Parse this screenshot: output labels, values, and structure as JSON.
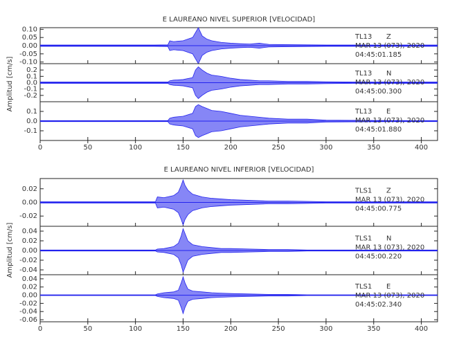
{
  "chart_data": [
    {
      "type": "line",
      "title": "E LAUREANO NIVEL SUPERIOR [VELOCIDAD]",
      "ylabel": "Amplitud [cm/s]",
      "xlim": [
        0,
        417
      ],
      "xticks": [
        0,
        50,
        100,
        150,
        200,
        250,
        300,
        350,
        400
      ],
      "x": [
        0,
        30,
        60,
        90,
        120,
        134,
        136,
        140,
        150,
        160,
        163,
        166,
        170,
        175,
        180,
        190,
        200,
        210,
        220,
        230,
        240,
        260,
        280,
        300,
        330,
        360,
        390,
        417
      ],
      "panels": [
        {
          "station": "TL13",
          "component": "Z",
          "date": "MAR 13 (073), 2020",
          "time": "04:45:01.185",
          "color": "#2222ee",
          "ylim": [
            -0.11,
            0.11
          ],
          "yticks": [
            {
              "value": 0.1,
              "label": "0.10"
            },
            {
              "value": 0.05,
              "label": "0.05"
            },
            {
              "value": 0,
              "label": "0.00"
            },
            {
              "value": -0.05,
              "label": "-0.05"
            },
            {
              "value": -0.1,
              "label": "-0.10"
            }
          ],
          "values": [
            0.004,
            0.004,
            0.004,
            0.004,
            0.004,
            0.005,
            0.03,
            0.025,
            0.03,
            0.05,
            0.08,
            0.11,
            0.06,
            0.04,
            0.03,
            0.02,
            0.015,
            0.012,
            0.01,
            0.015,
            0.008,
            0.006,
            0.005,
            0.004,
            0.004,
            0.004,
            0.004,
            0.004
          ]
        },
        {
          "station": "TL13",
          "component": "N",
          "date": "MAR 13 (073), 2020",
          "time": "04:45:00.300",
          "color": "#2222ee",
          "ylim": [
            -0.3,
            0.3
          ],
          "yticks": [
            0.2,
            0.1,
            {
              "value": 0,
              "label": "0.0"
            },
            -0.1,
            -0.2
          ],
          "values": [
            0.01,
            0.01,
            0.01,
            0.01,
            0.01,
            0.01,
            0.03,
            0.04,
            0.05,
            0.08,
            0.2,
            0.25,
            0.2,
            0.15,
            0.12,
            0.1,
            0.07,
            0.05,
            0.04,
            0.03,
            0.03,
            0.02,
            0.02,
            0.015,
            0.01,
            0.01,
            0.01,
            0.01
          ]
        },
        {
          "station": "TL13",
          "component": "E",
          "date": "MAR 13 (073), 2020",
          "time": "04:45:01.880",
          "color": "#2222ee",
          "ylim": [
            -0.2,
            0.2
          ],
          "yticks": [
            0.1,
            {
              "value": 0,
              "label": "0.0"
            },
            -0.1
          ],
          "values": [
            0.005,
            0.005,
            0.005,
            0.005,
            0.005,
            0.005,
            0.03,
            0.04,
            0.05,
            0.08,
            0.15,
            0.17,
            0.15,
            0.13,
            0.11,
            0.1,
            0.08,
            0.06,
            0.05,
            0.04,
            0.03,
            0.02,
            0.02,
            0.01,
            0.008,
            0.006,
            0.005,
            0.005
          ]
        }
      ]
    },
    {
      "type": "line",
      "title": "E LAUREANO NIVEL INFERIOR [VELOCIDAD]",
      "ylabel": "Amplitud [cm/s]",
      "xlim": [
        0,
        417
      ],
      "xticks": [
        0,
        50,
        100,
        150,
        200,
        250,
        300,
        350,
        400
      ],
      "x": [
        0,
        30,
        60,
        90,
        110,
        121,
        123,
        130,
        140,
        145,
        148,
        150,
        152,
        155,
        160,
        170,
        180,
        190,
        200,
        220,
        240,
        260,
        280,
        300,
        330,
        360,
        390,
        417
      ],
      "panels": [
        {
          "station": "TLS1",
          "component": "Z",
          "date": "MAR 13 (073), 2020",
          "time": "04:45:00.775",
          "color": "#2222ee",
          "ylim": [
            -0.035,
            0.035
          ],
          "yticks": [
            0.02,
            {
              "value": 0,
              "label": "0.00"
            },
            -0.02
          ],
          "values": [
            0.001,
            0.001,
            0.001,
            0.001,
            0.001,
            0.001,
            0.008,
            0.007,
            0.01,
            0.015,
            0.025,
            0.033,
            0.025,
            0.018,
            0.012,
            0.008,
            0.006,
            0.005,
            0.004,
            0.003,
            0.002,
            0.002,
            0.0015,
            0.001,
            0.001,
            0.001,
            0.001,
            0.001
          ]
        },
        {
          "station": "TLS1",
          "component": "N",
          "date": "MAR 13 (073), 2020",
          "time": "04:45:00.220",
          "color": "#2222ee",
          "ylim": [
            -0.05,
            0.05
          ],
          "yticks": [
            0.04,
            0.02,
            {
              "value": 0,
              "label": "0.00"
            },
            -0.02,
            -0.04
          ],
          "values": [
            0.001,
            0.001,
            0.001,
            0.001,
            0.001,
            0.001,
            0.003,
            0.004,
            0.008,
            0.015,
            0.03,
            0.045,
            0.035,
            0.02,
            0.012,
            0.008,
            0.006,
            0.004,
            0.004,
            0.003,
            0.002,
            0.002,
            0.001,
            0.001,
            0.001,
            0.001,
            0.001,
            0.001
          ]
        },
        {
          "station": "TLS1",
          "component": "E",
          "date": "MAR 13 (073), 2020",
          "time": "04:45:02.340",
          "color": "#2222ee",
          "ylim": [
            -0.065,
            0.05
          ],
          "yticks": [
            0.04,
            0.02,
            {
              "value": 0,
              "label": "0.00"
            },
            -0.02,
            -0.04,
            -0.06
          ],
          "values": [
            0.001,
            0.001,
            0.001,
            0.001,
            0.001,
            0.001,
            0.003,
            0.006,
            0.008,
            0.012,
            0.03,
            0.045,
            0.03,
            0.015,
            0.01,
            0.008,
            0.006,
            0.005,
            0.004,
            0.003,
            0.002,
            0.002,
            0.001,
            0.001,
            0.001,
            0.001,
            0.001,
            0.001
          ]
        }
      ]
    }
  ]
}
